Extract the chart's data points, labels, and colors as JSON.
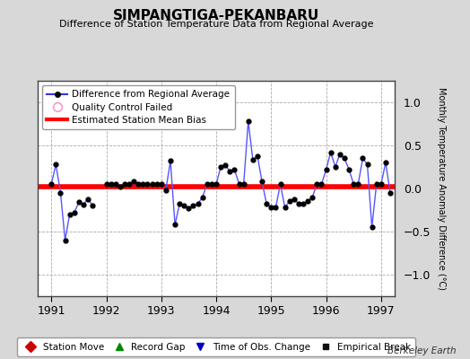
{
  "title": "SIMPANGTIGA-PEKANBARU",
  "subtitle": "Difference of Station Temperature Data from Regional Average",
  "ylabel": "Monthly Temperature Anomaly Difference (°C)",
  "xlim": [
    1990.75,
    1997.25
  ],
  "ylim": [
    -1.25,
    1.25
  ],
  "yticks": [
    -1,
    -0.5,
    0,
    0.5,
    1
  ],
  "bias_value": 0.02,
  "background_color": "#d8d8d8",
  "plot_bg_color": "#ffffff",
  "line_color": "#5555ff",
  "marker_color": "#000000",
  "bias_color": "#ff0000",
  "x_data": [
    1991.0,
    1991.083,
    1991.167,
    1991.25,
    1991.333,
    1991.417,
    1991.5,
    1991.583,
    1991.667,
    1991.75,
    1992.0,
    1992.083,
    1992.167,
    1992.25,
    1992.333,
    1992.417,
    1992.5,
    1992.583,
    1992.667,
    1992.75,
    1992.833,
    1992.917,
    1993.0,
    1993.083,
    1993.167,
    1993.25,
    1993.333,
    1993.417,
    1993.5,
    1993.583,
    1993.667,
    1993.75,
    1993.833,
    1993.917,
    1994.0,
    1994.083,
    1994.167,
    1994.25,
    1994.333,
    1994.417,
    1994.5,
    1994.583,
    1994.667,
    1994.75,
    1994.833,
    1994.917,
    1995.0,
    1995.083,
    1995.167,
    1995.25,
    1995.333,
    1995.417,
    1995.5,
    1995.583,
    1995.667,
    1995.75,
    1995.833,
    1995.917,
    1996.0,
    1996.083,
    1996.167,
    1996.25,
    1996.333,
    1996.417,
    1996.5,
    1996.583,
    1996.667,
    1996.75,
    1996.833,
    1996.917,
    1997.0,
    1997.083,
    1997.167
  ],
  "y_data": [
    0.05,
    0.28,
    -0.05,
    -0.6,
    -0.3,
    -0.28,
    -0.16,
    -0.19,
    -0.12,
    -0.2,
    0.05,
    0.05,
    0.05,
    0.02,
    0.05,
    0.05,
    0.08,
    0.05,
    0.05,
    0.05,
    0.05,
    0.05,
    0.05,
    -0.02,
    0.32,
    -0.42,
    -0.18,
    -0.2,
    -0.23,
    -0.2,
    -0.18,
    -0.1,
    0.05,
    0.05,
    0.05,
    0.25,
    0.27,
    0.2,
    0.22,
    0.05,
    0.05,
    0.78,
    0.33,
    0.38,
    0.08,
    -0.18,
    -0.22,
    -0.22,
    0.05,
    -0.22,
    -0.15,
    -0.12,
    -0.18,
    -0.18,
    -0.15,
    -0.1,
    0.05,
    0.05,
    0.22,
    0.42,
    0.25,
    0.4,
    0.35,
    0.22,
    0.05,
    0.05,
    0.35,
    0.28,
    -0.45,
    0.05,
    0.05,
    0.3,
    -0.05
  ]
}
